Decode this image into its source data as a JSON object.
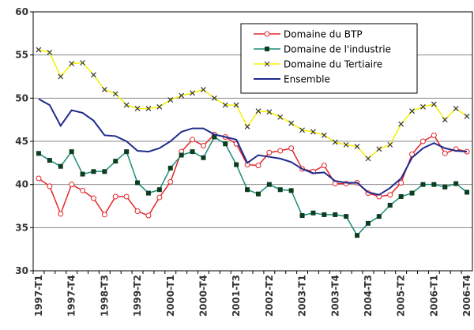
{
  "chart_data": {
    "type": "line",
    "categories": [
      "1997-T1",
      null,
      null,
      "1997-T4",
      null,
      null,
      "1998-T3",
      null,
      null,
      "1999-T2",
      null,
      null,
      "2000-T1",
      null,
      null,
      "2000-T4",
      null,
      null,
      "2001-T3",
      null,
      null,
      "2002-T2",
      null,
      null,
      "2003-T1",
      null,
      null,
      "2003-T4",
      null,
      null,
      "2004-T3",
      null,
      null,
      "2005-T2",
      null,
      null,
      "2006-T1",
      null,
      null,
      "2006-T4"
    ],
    "series": [
      {
        "name": "Domaine du BTP",
        "color": "#e3262b",
        "marker": "circle",
        "marker_color": "#ffffff",
        "values": [
          40.7,
          39.8,
          36.6,
          40,
          39.3,
          38.4,
          36.5,
          38.6,
          38.6,
          36.9,
          36.4,
          38.5,
          40.3,
          43.8,
          45.2,
          44.5,
          45.8,
          45.5,
          44.7,
          42.3,
          42.2,
          43.7,
          43.9,
          44.2,
          41.8,
          41.5,
          42.2,
          40.1,
          40.1,
          40.2,
          39,
          38.6,
          38.8,
          40.2,
          43.5,
          45,
          45.7,
          43.6,
          44.1,
          43.8
        ]
      },
      {
        "name": "Domaine de l'industrie",
        "color": "#1b8c78",
        "marker": "square",
        "marker_color": "#0b3d1e",
        "values": [
          43.6,
          42.8,
          42.1,
          43.8,
          41.2,
          41.5,
          41.5,
          42.7,
          43.8,
          40.2,
          39,
          39.4,
          41.9,
          43.4,
          43.8,
          43.1,
          45.5,
          44.7,
          42.3,
          39.4,
          38.9,
          40,
          39.4,
          39.3,
          36.4,
          36.7,
          36.5,
          36.5,
          36.3,
          34.1,
          35.5,
          36.3,
          37.6,
          38.6,
          39,
          40,
          40,
          39.7,
          40.1,
          39.1
        ]
      },
      {
        "name": "Domaine du Tertiaire",
        "color": "#f5f000",
        "marker": "x",
        "marker_color": "#333333",
        "values": [
          55.6,
          55.3,
          52.5,
          54,
          54.1,
          52.7,
          51,
          50.5,
          49.2,
          48.8,
          48.8,
          49,
          49.8,
          50.3,
          50.6,
          51,
          50,
          49.2,
          49.2,
          46.7,
          48.5,
          48.4,
          47.8,
          47.1,
          46.3,
          46.1,
          45.7,
          44.9,
          44.6,
          44.4,
          43,
          44.1,
          44.6,
          47,
          48.5,
          49,
          49.3,
          47.5,
          48.8,
          47.9
        ]
      },
      {
        "name": "Ensemble",
        "color": "#1e2b8c",
        "marker": "none",
        "values": [
          49.9,
          49.2,
          46.8,
          48.6,
          48.3,
          47.4,
          45.7,
          45.6,
          45,
          43.9,
          43.8,
          44.2,
          45,
          46.1,
          46.5,
          46.5,
          45.8,
          45.5,
          45.2,
          42.5,
          43.4,
          43.2,
          43,
          42.6,
          41.8,
          41.3,
          41.4,
          40.4,
          40.2,
          40.2,
          39.1,
          38.8,
          39.6,
          40.7,
          43.1,
          44.2,
          44.8,
          44.2,
          43.9,
          43.8
        ]
      }
    ],
    "ylim": [
      30,
      60
    ],
    "yticks": [
      30,
      35,
      40,
      45,
      50,
      55,
      60
    ],
    "grid": true,
    "legend": "upper right"
  }
}
